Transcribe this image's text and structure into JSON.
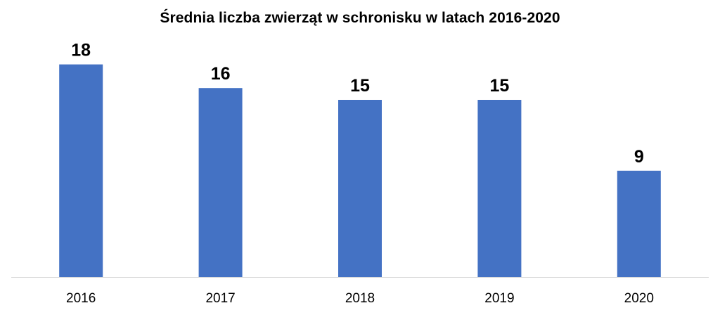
{
  "chart_data": {
    "type": "bar",
    "title": "Średnia liczba zwierząt w schronisku w latach 2016-2020",
    "categories": [
      "2016",
      "2017",
      "2018",
      "2019",
      "2020"
    ],
    "values": [
      18,
      16,
      15,
      15,
      9
    ],
    "data_labels": [
      "18",
      "16",
      "15",
      "15",
      "9"
    ],
    "xlabel": "",
    "ylabel": "",
    "ylim": [
      0,
      18
    ],
    "grid": false,
    "legend": "none",
    "bar_color": "#4472C4",
    "axis_color": "#D9D9D9"
  }
}
